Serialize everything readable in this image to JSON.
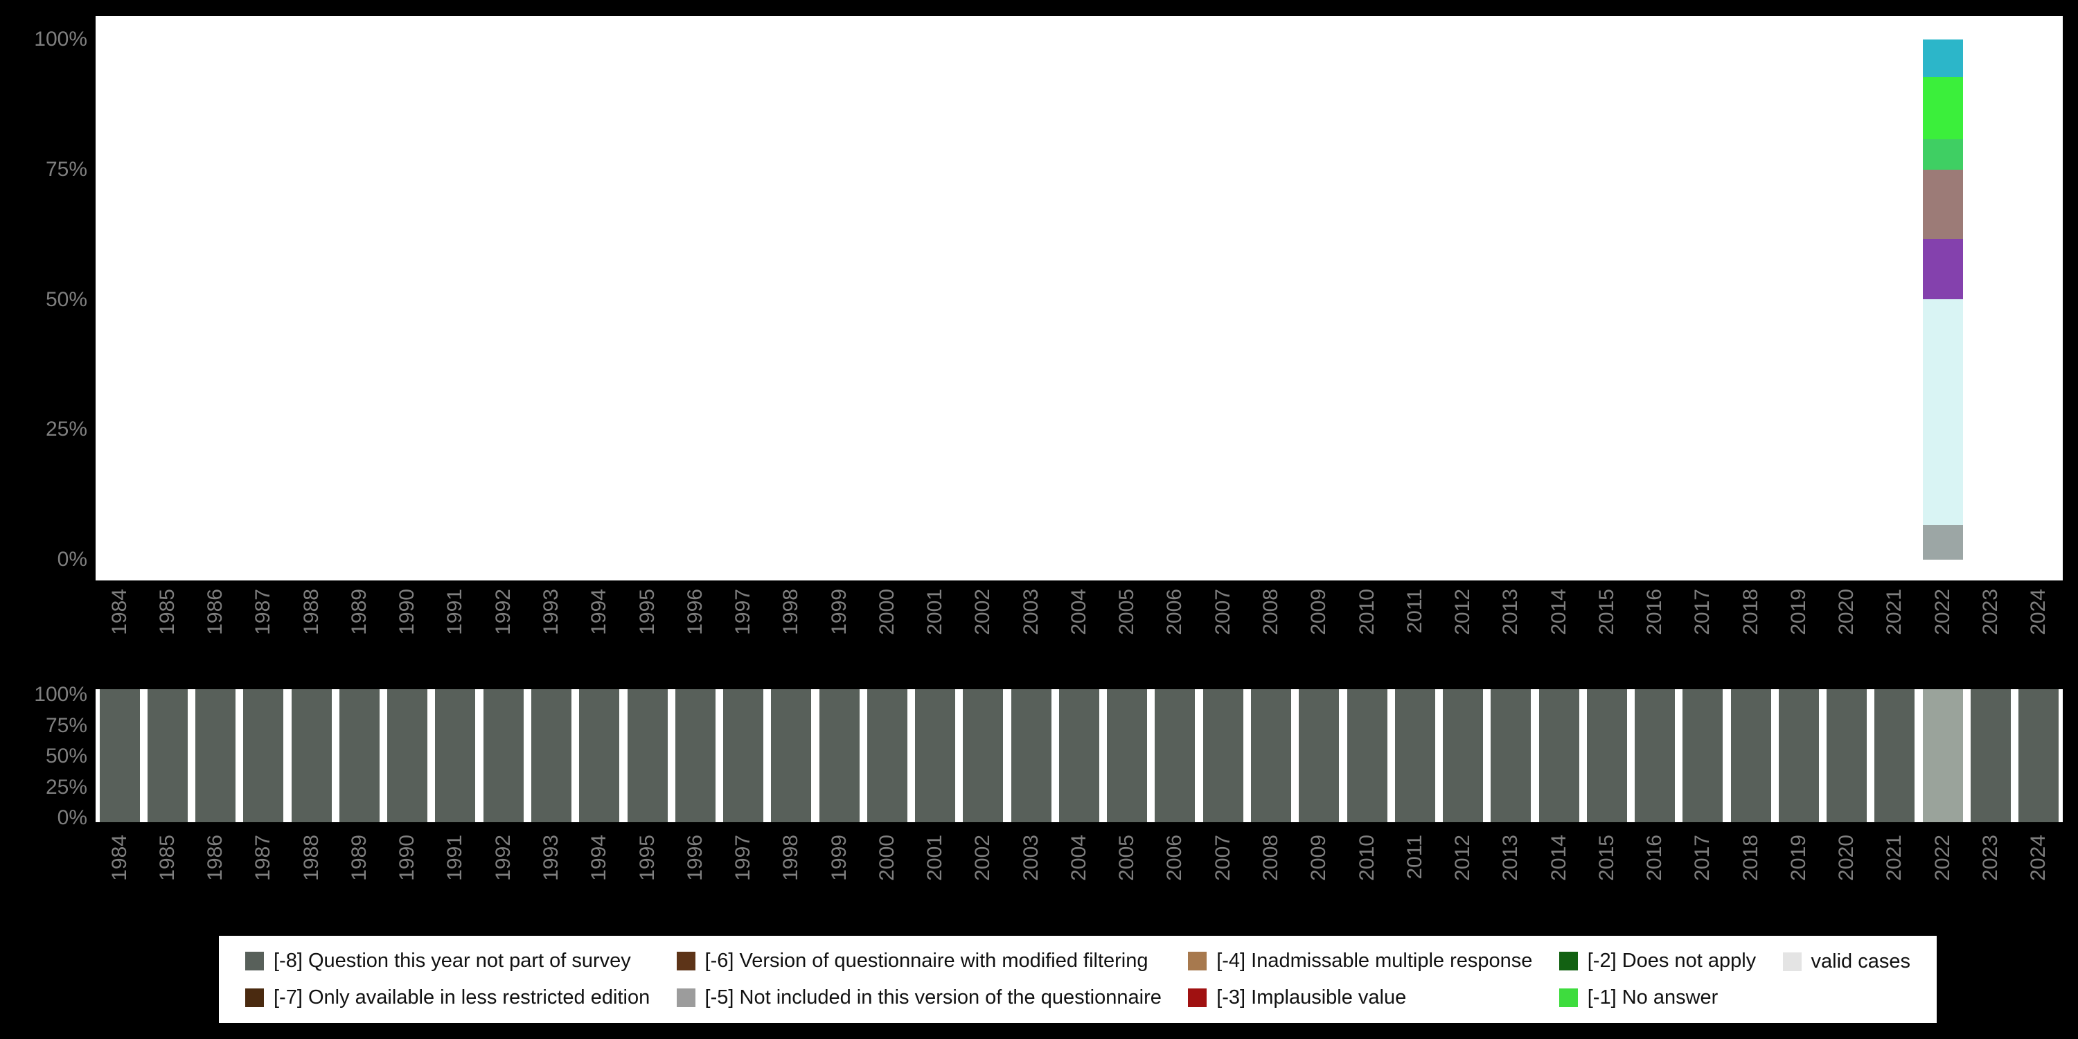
{
  "colors": {
    "background": "#000000",
    "panel": "#ffffff",
    "tick_label": "#7f7f7f",
    "legend_text": "#111111"
  },
  "chart_data": [
    {
      "id": "top-distribution-chart",
      "type": "bar",
      "stacked": true,
      "title": "",
      "xlabel": "",
      "ylabel": "",
      "ylim": [
        0,
        100
      ],
      "grid": false,
      "y_tick_labels_top_down": [
        "100%",
        "75%",
        "50%",
        "25%",
        "0%"
      ],
      "categories": [
        "1984",
        "1985",
        "1986",
        "1987",
        "1988",
        "1989",
        "1990",
        "1991",
        "1992",
        "1993",
        "1994",
        "1995",
        "1996",
        "1997",
        "1998",
        "1999",
        "2000",
        "2001",
        "2002",
        "2003",
        "2004",
        "2005",
        "2006",
        "2007",
        "2008",
        "2009",
        "2010",
        "2011",
        "2012",
        "2013",
        "2014",
        "2015",
        "2016",
        "2017",
        "2018",
        "2019",
        "2020",
        "2021",
        "2022",
        "2023",
        "2024"
      ],
      "bars": [
        {
          "x": "2022",
          "segments_bottom_to_top": [
            {
              "name": "gray",
              "color": "#9ca6a5",
              "value_pct": 6.6
            },
            {
              "name": "pale-cyan",
              "color": "#d9f4f4",
              "value_pct": 43.5
            },
            {
              "name": "purple",
              "color": "#8441ad",
              "value_pct": 11.5
            },
            {
              "name": "mauve",
              "color": "#9c7b77",
              "value_pct": 13.3
            },
            {
              "name": "medium-green",
              "color": "#3fcf63",
              "value_pct": 5.9
            },
            {
              "name": "bright-green",
              "color": "#3bef3b",
              "value_pct": 12.0
            },
            {
              "name": "teal",
              "color": "#2cb6c9",
              "value_pct": 7.2
            }
          ]
        }
      ]
    },
    {
      "id": "bottom-availability-chart",
      "type": "bar",
      "stacked": false,
      "title": "",
      "xlabel": "",
      "ylabel": "",
      "ylim": [
        0,
        100
      ],
      "grid": false,
      "y_tick_labels_top_down": [
        "100%",
        "75%",
        "50%",
        "25%",
        "0%"
      ],
      "categories": [
        "1984",
        "1985",
        "1986",
        "1987",
        "1988",
        "1989",
        "1990",
        "1991",
        "1992",
        "1993",
        "1994",
        "1995",
        "1996",
        "1997",
        "1998",
        "1999",
        "2000",
        "2001",
        "2002",
        "2003",
        "2004",
        "2005",
        "2006",
        "2007",
        "2008",
        "2009",
        "2010",
        "2011",
        "2012",
        "2013",
        "2014",
        "2015",
        "2016",
        "2017",
        "2018",
        "2019",
        "2020",
        "2021",
        "2022",
        "2023",
        "2024"
      ],
      "value_pct_all_years": 100,
      "default_color": "#58605a",
      "color_exceptions": {
        "2022": "#9aa39b"
      }
    }
  ],
  "legend": {
    "columns": [
      {
        "items": [
          {
            "label": "[-8] Question this year not part of survey",
            "color": "#58605a"
          },
          {
            "label": "[-7] Only available in less restricted edition",
            "color": "#4a2a10"
          }
        ]
      },
      {
        "items": [
          {
            "label": "[-6] Version of questionnaire with modified filtering",
            "color": "#5d3418"
          },
          {
            "label": "[-5] Not included in this version of the questionnaire",
            "color": "#9c9c9c"
          }
        ]
      },
      {
        "items": [
          {
            "label": "[-4] Inadmissable multiple response",
            "color": "#a7794e"
          },
          {
            "label": "[-3] Implausible value",
            "color": "#a01111"
          }
        ]
      },
      {
        "items": [
          {
            "label": "[-2] Does not apply",
            "color": "#126112"
          },
          {
            "label": "[-1] No answer",
            "color": "#3edc3e"
          }
        ]
      },
      {
        "items": [
          {
            "label": "valid cases",
            "color": "#e4e4e4"
          }
        ]
      }
    ]
  }
}
